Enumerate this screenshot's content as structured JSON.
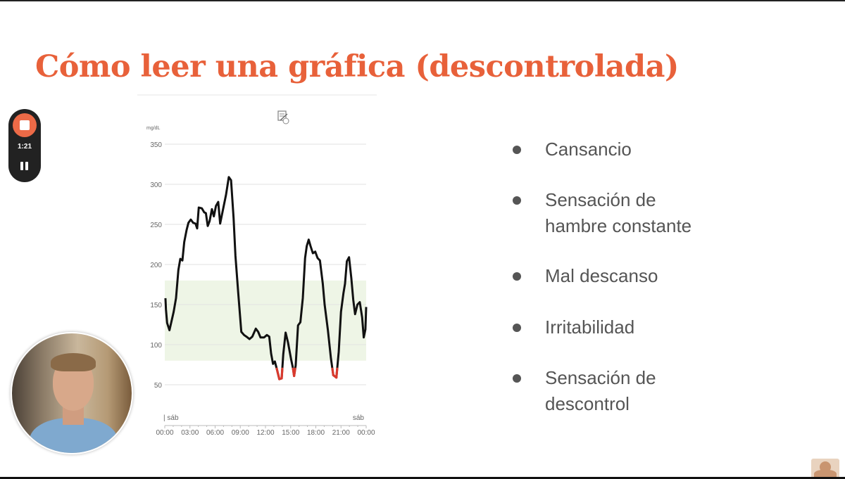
{
  "slide": {
    "title": "Cómo leer una gráfica (descontrolada)",
    "accent_color": "#e8613a",
    "bullets": [
      {
        "lines": [
          "Cansancio"
        ]
      },
      {
        "lines": [
          "Sensación de",
          "hambre constante"
        ]
      },
      {
        "lines": [
          "Mal descanso"
        ]
      },
      {
        "lines": [
          "Irritabilidad"
        ]
      },
      {
        "lines": [
          "Sensación de",
          "descontrol"
        ]
      }
    ]
  },
  "recorder": {
    "elapsed": "1:21",
    "stop_icon": "stop-icon",
    "pause_icon": "pause-icon"
  },
  "chart_data": {
    "type": "line",
    "unit_label": "mg/dL",
    "ylim": [
      50,
      350
    ],
    "yticks": [
      350,
      300,
      250,
      200,
      150,
      100,
      50
    ],
    "xlim": [
      0,
      24
    ],
    "xtick_labels": [
      "00:00",
      "03:00",
      "06:00",
      "09:00",
      "12:00",
      "15:00",
      "18:00",
      "21:00",
      "00:00"
    ],
    "day_labels": [
      "| sáb",
      "sáb"
    ],
    "target_range": [
      80,
      180
    ],
    "low_threshold": 70,
    "colors": {
      "line": "#111111",
      "low": "#d93a2e",
      "target_band": "#eef5e6",
      "grid": "#e2e2e2"
    },
    "series": [
      {
        "name": "glucose",
        "x": [
          0.08,
          0.14,
          0.28,
          0.56,
          1.06,
          1.34,
          1.62,
          1.85,
          2.1,
          2.32,
          2.6,
          2.82,
          3.1,
          3.38,
          3.66,
          3.86,
          4.05,
          4.42,
          4.7,
          4.9,
          5.12,
          5.34,
          5.62,
          5.85,
          6.1,
          6.37,
          6.6,
          6.93,
          7.3,
          7.63,
          7.9,
          8.2,
          8.42,
          8.75,
          9.12,
          9.45,
          9.73,
          10.1,
          10.43,
          10.85,
          11.13,
          11.41,
          11.83,
          12.17,
          12.45,
          12.67,
          12.9,
          13.12,
          13.37,
          13.65,
          13.93,
          14.12,
          14.4,
          14.68,
          15.05,
          15.27,
          15.41,
          15.6,
          15.88,
          16.16,
          16.45,
          16.72,
          16.92,
          17.15,
          17.37,
          17.65,
          17.93,
          18.21,
          18.49,
          18.83,
          19.05,
          19.44,
          19.8,
          20.08,
          20.45,
          20.73,
          21.0,
          21.29,
          21.48,
          21.7,
          21.96,
          22.23,
          22.46,
          22.68,
          22.96,
          23.24,
          23.52,
          23.71,
          23.91,
          24.0
        ],
        "y": [
          158,
          144,
          127,
          118,
          141,
          158,
          193,
          207,
          205,
          228,
          243,
          252,
          256,
          252,
          251,
          245,
          271,
          270,
          265,
          264,
          248,
          254,
          269,
          260,
          273,
          278,
          251,
          268,
          287,
          309,
          305,
          258,
          211,
          165,
          116,
          112,
          110,
          107,
          110,
          120,
          116,
          109,
          109,
          112,
          110,
          89,
          76,
          79,
          69,
          57,
          58,
          88,
          115,
          103,
          82,
          71,
          61,
          74,
          124,
          128,
          158,
          208,
          223,
          231,
          223,
          214,
          216,
          208,
          205,
          176,
          150,
          118,
          83,
          62,
          59,
          91,
          141,
          164,
          176,
          204,
          209,
          183,
          156,
          138,
          150,
          153,
          134,
          109,
          119,
          147
        ]
      }
    ]
  }
}
